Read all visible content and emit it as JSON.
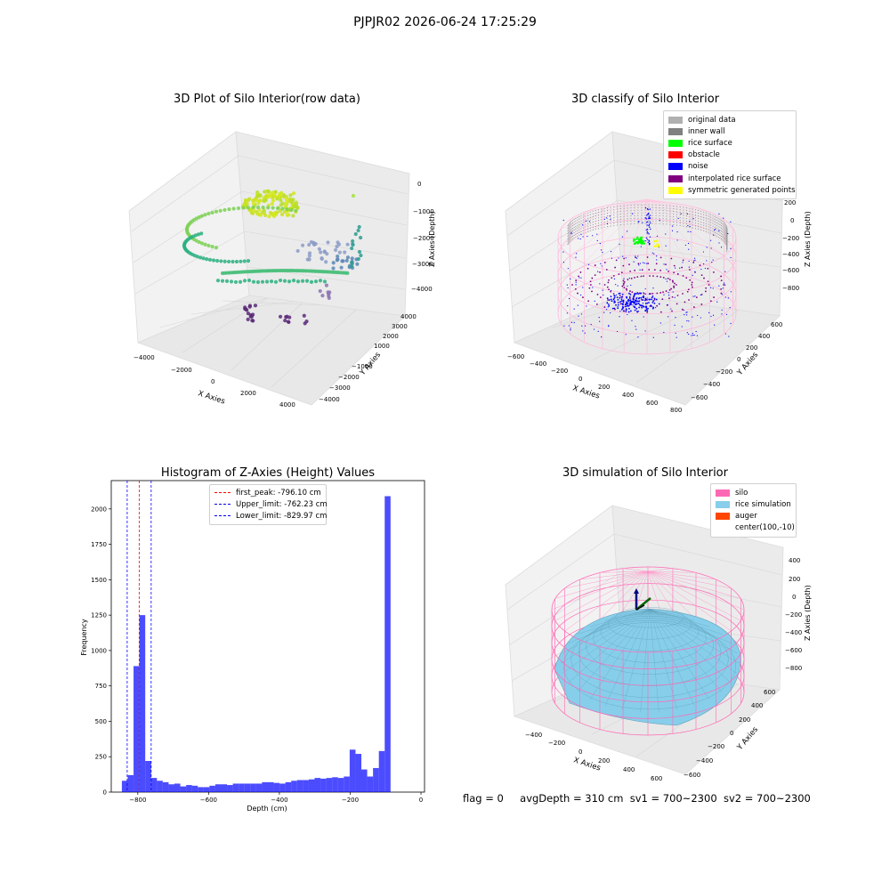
{
  "suptitle": "PJPJR02 2026-06-24 17:25:29",
  "panels": {
    "raw": {
      "title": "3D Plot of Silo Interior(row data)",
      "xlabel": "X Axies",
      "ylabel": "Y Axies",
      "zlabel": "Z Axies (Depth)",
      "xticks": [
        "−4000",
        "−2000",
        "0",
        "2000",
        "4000"
      ],
      "yticks": [
        "4000",
        "3000",
        "2000",
        "1000",
        "−1000",
        "−2000",
        "−3000",
        "−4000"
      ],
      "zticks": [
        "0",
        "−1000",
        "−2000",
        "−3000",
        "−4000"
      ]
    },
    "classify": {
      "title": "3D classify of Silo Interior",
      "xlabel": "X Axies",
      "ylabel": "Y Axies",
      "zlabel": "Z Axies (Depth)",
      "xticks": [
        "−600",
        "−400",
        "−200",
        "0",
        "200",
        "400",
        "600",
        "800"
      ],
      "yticks": [
        "600",
        "400",
        "200",
        "0",
        "−200",
        "−400",
        "−600"
      ],
      "zticks": [
        "400",
        "200",
        "0",
        "−200",
        "−400",
        "−600",
        "−800"
      ],
      "legend": [
        {
          "label": "original data",
          "color": "#b0b0b0"
        },
        {
          "label": "inner wall",
          "color": "#808080"
        },
        {
          "label": "rice surface",
          "color": "#00ff00"
        },
        {
          "label": "obstacle",
          "color": "#ff0000"
        },
        {
          "label": "noise",
          "color": "#0000ff"
        },
        {
          "label": "interpolated rice surface",
          "color": "#800080"
        },
        {
          "label": "symmetric generated points",
          "color": "#ffff00"
        }
      ]
    },
    "simulation": {
      "title": "3D simulation of Silo Interior",
      "xlabel": "X Axies",
      "ylabel": "Y Axies",
      "zlabel": "Z Axies (Depth)",
      "xticks": [
        "−400",
        "−200",
        "0",
        "200",
        "400",
        "600"
      ],
      "yticks": [
        "600",
        "400",
        "200",
        "0",
        "−200",
        "−400",
        "−600"
      ],
      "zticks": [
        "400",
        "200",
        "0",
        "−200",
        "−400",
        "−600",
        "−800"
      ],
      "legend": [
        {
          "label": "silo",
          "color": "#ff69b4"
        },
        {
          "label": "rice simulation",
          "color": "#87ceeb"
        },
        {
          "label": "auger",
          "color": "#ff4500"
        },
        {
          "label": "center(100,-10)",
          "color": ""
        }
      ]
    }
  },
  "chart_data": {
    "type": "bar",
    "title": "Histogram of Z-Axies (Height) Values",
    "xlabel": "Depth (cm)",
    "ylabel": "Frequency",
    "xlim": [
      -875,
      10
    ],
    "ylim": [
      0,
      2200
    ],
    "xticks": [
      -800,
      -600,
      -400,
      -200,
      0
    ],
    "yticks": [
      0,
      250,
      500,
      750,
      1000,
      1250,
      1500,
      1750,
      2000
    ],
    "bar_color": "#0000ff",
    "bin_width": 16.5,
    "bins_start": -845,
    "values": [
      80,
      120,
      890,
      1250,
      220,
      100,
      80,
      70,
      55,
      60,
      40,
      50,
      45,
      35,
      35,
      45,
      55,
      55,
      50,
      60,
      60,
      60,
      60,
      60,
      70,
      70,
      65,
      60,
      70,
      80,
      85,
      85,
      90,
      100,
      95,
      100,
      105,
      100,
      110,
      300,
      270,
      160,
      110,
      170,
      290,
      2090
    ],
    "legend_placement": "upper center",
    "vlines": [
      {
        "label": "first_peak: -796.10 cm",
        "x": -796.1,
        "color": "#ff0000"
      },
      {
        "label": "Upper_limit: -762.23 cm",
        "x": -762.23,
        "color": "#0000ff"
      },
      {
        "label": "Lower_limit: -829.97 cm",
        "x": -829.97,
        "color": "#0000ff"
      }
    ]
  },
  "status": {
    "flag": "flag = 0",
    "avg_depth": "avgDepth = 310 cm",
    "sv1": "sv1 = 700~2300",
    "sv2": "sv2 = 700~2300"
  }
}
